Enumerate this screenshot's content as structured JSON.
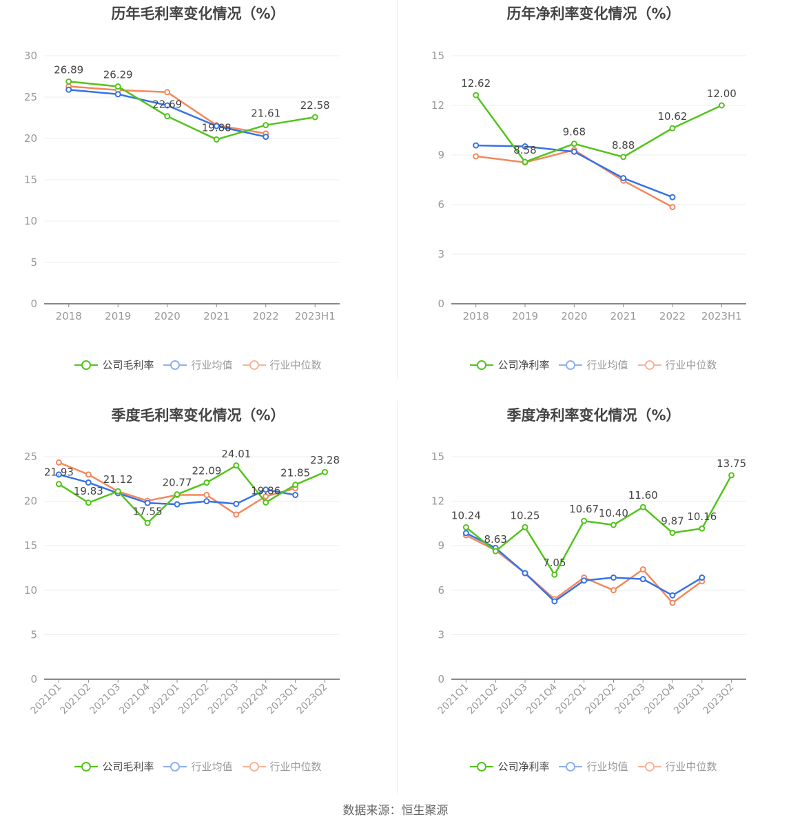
{
  "colors": {
    "company": "#52c41a",
    "avg": "#3572e8",
    "median": "#f5875a",
    "avg_legend": "#8fb0f0",
    "median_legend": "#f8b49a",
    "grid": "#e8ecf5",
    "axis": "#888888",
    "tick_label": "#999999",
    "value_label": "#444444"
  },
  "footer": {
    "source": "数据来源：恒生聚源"
  },
  "chart_data": [
    {
      "type": "line",
      "title": "历年毛利率变化情况（%）",
      "categories": [
        "2018",
        "2019",
        "2020",
        "2021",
        "2022",
        "2023H1"
      ],
      "ylim": [
        0,
        30
      ],
      "yticks": [
        "0",
        "5",
        "10",
        "15",
        "20",
        "25",
        "30"
      ],
      "ytick_values": [
        0,
        5,
        10,
        15,
        20,
        25,
        30
      ],
      "grid": true,
      "legend_position": "bottom",
      "series": [
        {
          "name": "公司毛利率",
          "key": "company",
          "values": [
            26.89,
            26.29,
            22.69,
            19.88,
            21.61,
            22.58
          ],
          "labels": [
            "26.89",
            "26.29",
            "22.69",
            "19.88",
            "21.61",
            "22.58"
          ]
        },
        {
          "name": "行业均值",
          "key": "avg",
          "values": [
            25.9,
            25.35,
            24.0,
            21.5,
            20.2,
            null
          ]
        },
        {
          "name": "行业中位数",
          "key": "median",
          "values": [
            26.3,
            25.85,
            25.6,
            21.6,
            20.6,
            null
          ]
        }
      ]
    },
    {
      "type": "line",
      "title": "历年净利率变化情况（%）",
      "categories": [
        "2018",
        "2019",
        "2020",
        "2021",
        "2022",
        "2023H1"
      ],
      "ylim": [
        0,
        15
      ],
      "yticks": [
        "0",
        "3",
        "6",
        "9",
        "12",
        "15"
      ],
      "ytick_values": [
        0,
        3,
        6,
        9,
        12,
        15
      ],
      "grid": true,
      "legend_position": "bottom",
      "series": [
        {
          "name": "公司净利率",
          "key": "company",
          "values": [
            12.62,
            8.58,
            9.68,
            8.88,
            10.62,
            12.0
          ],
          "labels": [
            "12.62",
            "8.58",
            "9.68",
            "8.88",
            "10.62",
            "12.00"
          ]
        },
        {
          "name": "行业均值",
          "key": "avg",
          "values": [
            9.58,
            9.52,
            9.2,
            7.6,
            6.45,
            null
          ]
        },
        {
          "name": "行业中位数",
          "key": "median",
          "values": [
            8.92,
            8.55,
            9.3,
            7.45,
            5.85,
            null
          ]
        }
      ]
    },
    {
      "type": "line",
      "title": "季度毛利率变化情况（%）",
      "categories": [
        "2021Q1",
        "2021Q2",
        "2021Q3",
        "2021Q4",
        "2022Q1",
        "2022Q2",
        "2022Q3",
        "2022Q4",
        "2023Q1",
        "2023Q2"
      ],
      "ylim": [
        0,
        25
      ],
      "yticks": [
        "0",
        "5",
        "10",
        "15",
        "20",
        "25"
      ],
      "ytick_values": [
        0,
        5,
        10,
        15,
        20,
        25
      ],
      "grid": true,
      "legend_position": "bottom",
      "series": [
        {
          "name": "公司毛利率",
          "key": "company",
          "values": [
            21.93,
            19.83,
            21.12,
            17.55,
            20.77,
            22.09,
            24.01,
            19.86,
            21.85,
            23.28
          ],
          "labels": [
            "21.93",
            "19.83",
            "21.12",
            "17.55",
            "20.77",
            "22.09",
            "24.01",
            "19.86",
            "21.85",
            "23.28"
          ]
        },
        {
          "name": "行业均值",
          "key": "avg",
          "values": [
            23.0,
            22.1,
            20.9,
            19.8,
            19.65,
            20.0,
            19.7,
            21.3,
            20.7,
            null
          ]
        },
        {
          "name": "行业中位数",
          "key": "median",
          "values": [
            24.35,
            23.0,
            21.1,
            20.05,
            20.7,
            20.7,
            18.5,
            20.55,
            21.45,
            null
          ]
        }
      ]
    },
    {
      "type": "line",
      "title": "季度净利率变化情况（%）",
      "categories": [
        "2021Q1",
        "2021Q2",
        "2021Q3",
        "2021Q4",
        "2022Q1",
        "2022Q2",
        "2022Q3",
        "2022Q4",
        "2023Q1",
        "2023Q2"
      ],
      "ylim": [
        0,
        15
      ],
      "yticks": [
        "0",
        "3",
        "6",
        "9",
        "12",
        "15"
      ],
      "ytick_values": [
        0,
        3,
        6,
        9,
        12,
        15
      ],
      "grid": true,
      "legend_position": "bottom",
      "series": [
        {
          "name": "公司净利率",
          "key": "company",
          "values": [
            10.24,
            8.63,
            10.25,
            7.05,
            10.67,
            10.4,
            11.6,
            9.87,
            10.16,
            13.75
          ],
          "labels": [
            "10.24",
            "8.63",
            "10.25",
            "7.05",
            "10.67",
            "10.40",
            "11.60",
            "9.87",
            "10.16",
            "13.75"
          ]
        },
        {
          "name": "行业均值",
          "key": "avg",
          "values": [
            9.85,
            8.85,
            7.15,
            5.25,
            6.65,
            6.85,
            6.75,
            5.65,
            6.85,
            null
          ]
        },
        {
          "name": "行业中位数",
          "key": "median",
          "values": [
            9.7,
            8.7,
            7.15,
            5.4,
            6.85,
            6.0,
            7.4,
            5.15,
            6.6,
            null
          ]
        }
      ]
    }
  ]
}
